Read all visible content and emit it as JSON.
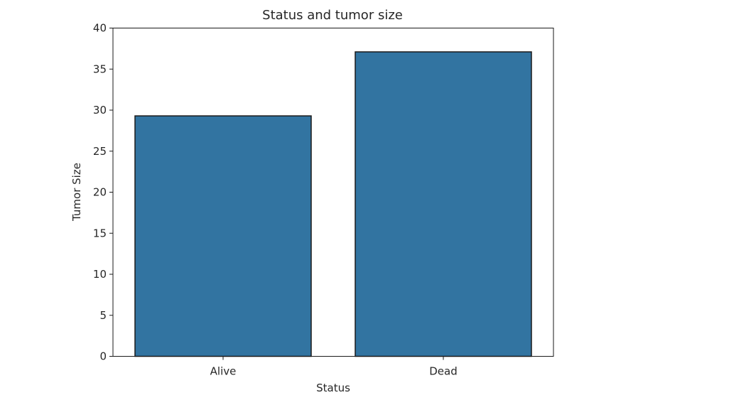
{
  "chart_data": {
    "type": "bar",
    "title": "Status and tumor size",
    "xlabel": "Status",
    "ylabel": "Tumor Size",
    "categories": [
      "Alive",
      "Dead"
    ],
    "values": [
      29.3,
      37.1
    ],
    "ylim": [
      0,
      40
    ],
    "yticks": [
      0,
      5,
      10,
      15,
      20,
      25,
      30,
      35,
      40
    ],
    "grid": false,
    "legend": "none",
    "bar_color": "#3274a1",
    "edge_color": "#1a1a1a"
  }
}
